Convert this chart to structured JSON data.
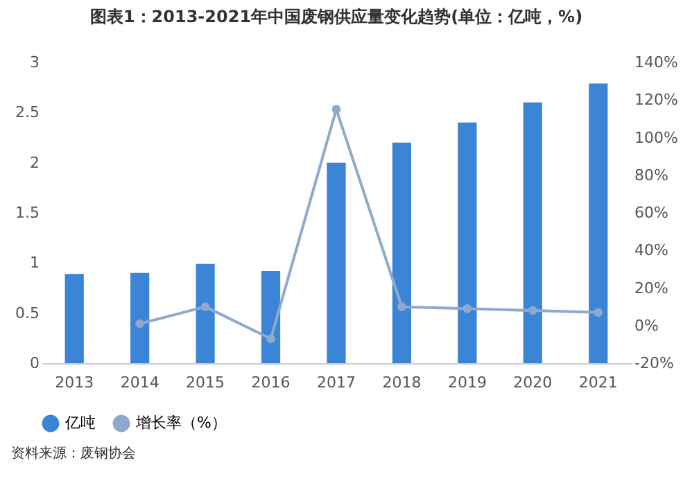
{
  "chart_data": {
    "type": "bar",
    "title": "图表1：2013-2021年中国废钢供应量变化趋势(单位：亿吨，%)",
    "categories": [
      "2013",
      "2014",
      "2015",
      "2016",
      "2017",
      "2018",
      "2019",
      "2020",
      "2021"
    ],
    "series": [
      {
        "name": "亿吨",
        "color": "#3b84d6",
        "values": [
          0.89,
          0.9,
          0.99,
          0.92,
          2.0,
          2.2,
          2.4,
          2.6,
          2.79
        ]
      },
      {
        "name": "增长率（%）",
        "type": "line",
        "axis": "y2",
        "color": "#8ea9cc",
        "values": [
          null,
          1,
          10,
          -7,
          115,
          10,
          9,
          8,
          7
        ]
      }
    ],
    "ylim": [
      0,
      3
    ],
    "yticks": [
      0,
      0.5,
      1,
      1.5,
      2,
      2.5,
      3
    ],
    "y2lim": [
      -20,
      140
    ],
    "y2ticks": [
      {
        "value": -20,
        "label": "-20%"
      },
      {
        "value": 0,
        "label": "0%"
      },
      {
        "value": 20,
        "label": "20%"
      },
      {
        "value": 40,
        "label": "40%"
      },
      {
        "value": 60,
        "label": "60%"
      },
      {
        "value": 80,
        "label": "80%"
      },
      {
        "value": 100,
        "label": "100%"
      },
      {
        "value": 120,
        "label": "120%"
      },
      {
        "value": 140,
        "label": "140%"
      }
    ],
    "legend": "bottom",
    "marker": "circle",
    "grid": false,
    "annotations": [
      "资料来源：废钢协会"
    ]
  }
}
